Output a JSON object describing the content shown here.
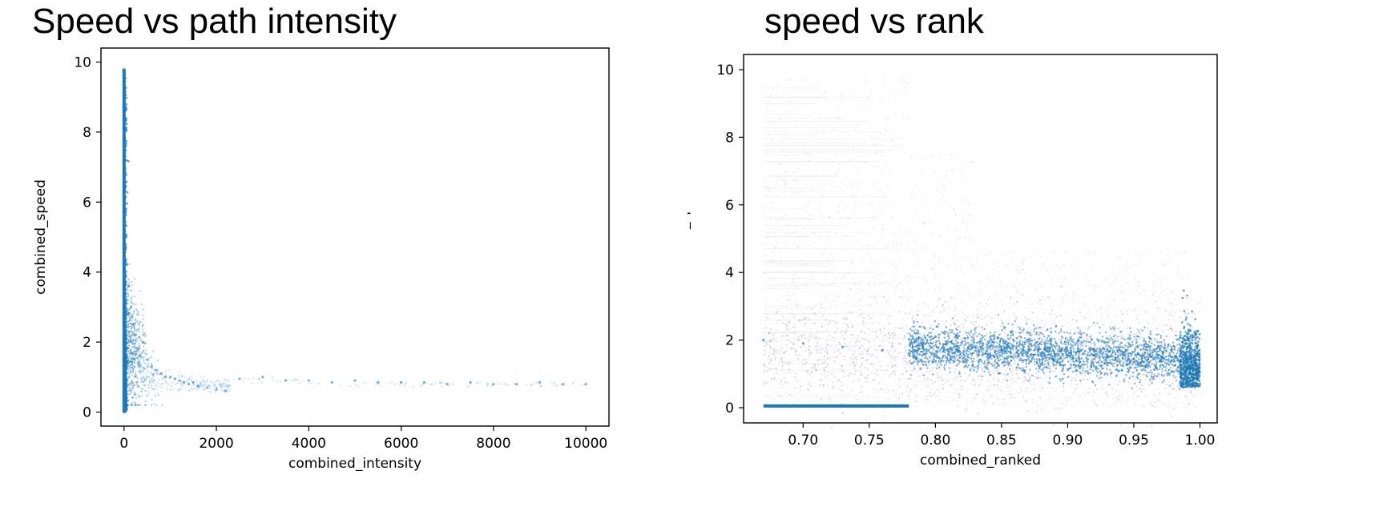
{
  "chart_data": [
    {
      "type": "scatter",
      "title": "Speed vs path intensity",
      "xlabel": "combined_intensity",
      "ylabel": "combined_speed",
      "xlim": [
        -500,
        10500
      ],
      "ylim": [
        -0.4,
        10.4
      ],
      "xticks": [
        0,
        2000,
        4000,
        6000,
        8000,
        10000
      ],
      "xtick_labels": [
        "0",
        "2000",
        "4000",
        "6000",
        "8000",
        "10000"
      ],
      "yticks": [
        0,
        2,
        4,
        6,
        8,
        10
      ],
      "ytick_labels": [
        "0",
        "2",
        "4",
        "6",
        "8",
        "10"
      ],
      "grid": false,
      "colors": {
        "points": "#1f77b4"
      },
      "series": [
        {
          "x": [
            0,
            0,
            0,
            0,
            0,
            0,
            20,
            30,
            50,
            80,
            100,
            150,
            200,
            250,
            300,
            350,
            400,
            500,
            600,
            700,
            800,
            900,
            1000,
            1100,
            1200,
            1300,
            1400,
            1500,
            1600,
            1800,
            2000,
            2200,
            2500,
            3000,
            3500,
            4000,
            4500,
            5000,
            5500,
            6000,
            6500,
            7000,
            7500,
            8000,
            8500,
            9000,
            9500,
            10000
          ],
          "y": [
            0.0,
            2.0,
            4.0,
            6.0,
            8.0,
            9.8,
            3.0,
            3.5,
            3.2,
            2.8,
            3.6,
            3.0,
            2.5,
            2.2,
            1.8,
            1.6,
            2.0,
            1.5,
            1.3,
            1.2,
            1.1,
            1.0,
            1.0,
            0.95,
            0.9,
            0.85,
            0.8,
            0.85,
            0.75,
            0.7,
            0.65,
            0.6,
            0.95,
            1.0,
            0.9,
            0.9,
            0.85,
            0.9,
            0.85,
            0.85,
            0.85,
            0.8,
            0.85,
            0.8,
            0.8,
            0.85,
            0.8,
            0.8
          ]
        }
      ]
    },
    {
      "type": "scatter",
      "title": "speed vs rank",
      "xlabel": "combined_ranked",
      "ylabel": "combined_speed",
      "xlim": [
        0.655,
        1.013
      ],
      "ylim": [
        -0.45,
        10.45
      ],
      "xticks": [
        0.7,
        0.75,
        0.8,
        0.85,
        0.9,
        0.95,
        1.0
      ],
      "xtick_labels": [
        "0.70",
        "0.75",
        "0.80",
        "0.85",
        "0.90",
        "0.95",
        "1.00"
      ],
      "yticks": [
        0,
        2,
        4,
        6,
        8,
        10
      ],
      "ytick_labels": [
        "0",
        "2",
        "4",
        "6",
        "8",
        "10"
      ],
      "grid": false,
      "colors": {
        "background_points": "#808080",
        "points": "#1f77b4",
        "mid_points": "#7b5aa6"
      },
      "series": [
        {
          "x": [
            0.67,
            0.7,
            0.73,
            0.76,
            0.78,
            0.8,
            0.83,
            0.85,
            0.88,
            0.9,
            0.93,
            0.95,
            0.97,
            0.99,
            1.0
          ],
          "y": [
            2.0,
            1.9,
            1.8,
            1.7,
            1.6,
            2.1,
            1.8,
            1.7,
            1.6,
            1.55,
            1.5,
            1.45,
            1.4,
            1.3,
            0.7
          ]
        },
        {
          "x": [
            0.67,
            0.7,
            0.72,
            0.74,
            0.76,
            0.78
          ],
          "y": [
            0.05,
            0.05,
            0.05,
            0.05,
            0.05,
            0.05
          ]
        }
      ]
    }
  ]
}
